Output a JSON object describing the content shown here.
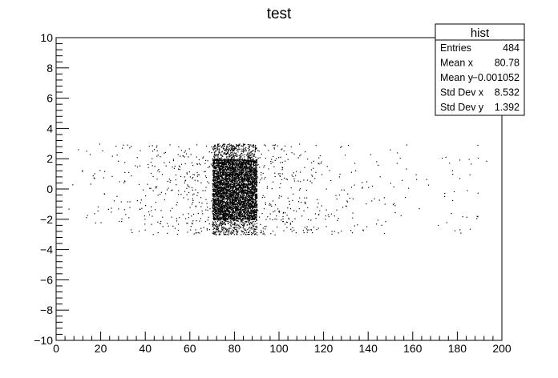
{
  "chart_data": {
    "type": "scatter",
    "title": "test",
    "xlabel": "",
    "ylabel": "",
    "xlim": [
      0,
      200
    ],
    "ylim": [
      -10,
      10
    ],
    "x_ticks": [
      0,
      20,
      40,
      60,
      80,
      100,
      120,
      140,
      160,
      180,
      200
    ],
    "y_ticks": [
      -10,
      -8,
      -6,
      -4,
      -2,
      0,
      2,
      4,
      6,
      8,
      10
    ],
    "x_tick_labels": [
      "0",
      "20",
      "40",
      "60",
      "80",
      "100",
      "120",
      "140",
      "160",
      "180",
      "200"
    ],
    "y_tick_labels": [
      "−10",
      "−8",
      "−6",
      "−4",
      "−2",
      "0",
      "2",
      "4",
      "6",
      "8",
      "10"
    ],
    "grid": false,
    "marker_color": "#000000",
    "distribution": {
      "dense_box": {
        "x": [
          70,
          90
        ],
        "y": [
          -3,
          3
        ]
      },
      "x_range": [
        5,
        195
      ],
      "y_range": [
        -3,
        3
      ]
    },
    "stats_box": {
      "name": "hist",
      "rows": [
        {
          "label": "Entries",
          "value": "484"
        },
        {
          "label": "Mean x",
          "value": "80.78"
        },
        {
          "label": "Mean y",
          "value": "−0.001052"
        },
        {
          "label": "Std Dev x",
          "value": "8.532"
        },
        {
          "label": "Std Dev y",
          "value": "1.392"
        }
      ]
    }
  }
}
